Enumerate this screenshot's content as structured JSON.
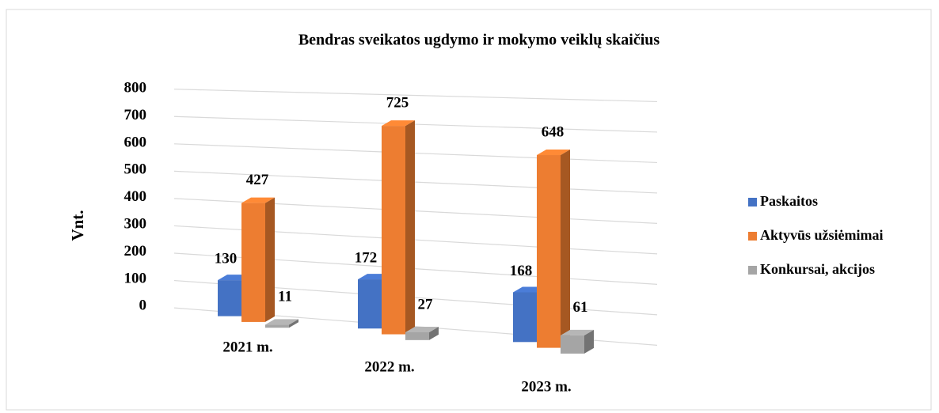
{
  "chart_data": {
    "type": "bar3d",
    "title": "Bendras sveikatos ugdymo ir  mokymo veiklų skaičius",
    "y_label": "Vnt.",
    "categories": [
      "2021 m.",
      "2022 m.",
      "2023 m."
    ],
    "series": [
      {
        "name": "Paskaitos",
        "color": "#4472c4",
        "values": [
          130,
          172,
          168
        ]
      },
      {
        "name": "Aktyvūs užsiėmimai",
        "color": "#ed7d31",
        "values": [
          427,
          725,
          648
        ]
      },
      {
        "name": "Konkursai, akcijos",
        "color": "#a5a5a5",
        "values": [
          11,
          27,
          61
        ]
      }
    ],
    "ylim": [
      0,
      800
    ],
    "yticks": [
      0,
      100,
      200,
      300,
      400,
      500,
      600,
      700,
      800
    ],
    "grid": true,
    "legend": "right"
  }
}
